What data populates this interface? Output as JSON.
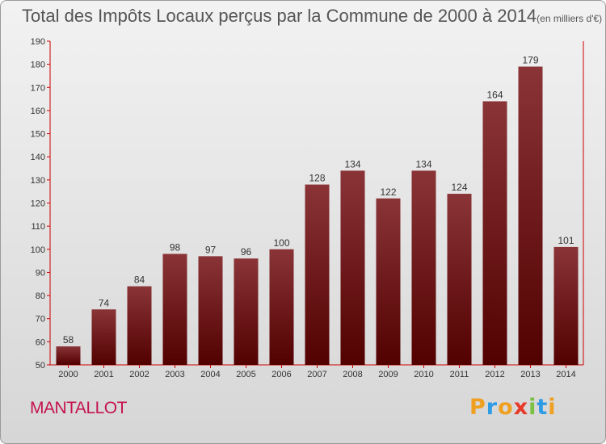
{
  "header": {
    "title": "Total des Impôts Locaux perçus par la Commune de 2000 à 2014",
    "unit": "(en milliers d'€)"
  },
  "commune": "MANTALLOT",
  "logo": {
    "letters": [
      "P",
      "r",
      "o",
      "x",
      "i",
      "t",
      "i"
    ],
    "colors": [
      "#f0a020",
      "#2e9be6",
      "#f0a020",
      "#e83a2a",
      "#7ac143",
      "#2e9be6",
      "#f0a020"
    ]
  },
  "colors": {
    "bar_top": "#8a3438",
    "bar_bottom": "#520000",
    "axis": "#cc0000",
    "title": "#555555",
    "commune": "#c4134d"
  },
  "chart_data": {
    "type": "bar",
    "title": "Total des Impôts Locaux perçus par la Commune de 2000 à 2014",
    "xlabel": "",
    "ylabel": "",
    "categories": [
      "2000",
      "2001",
      "2002",
      "2003",
      "2004",
      "2005",
      "2006",
      "2007",
      "2008",
      "2009",
      "2010",
      "2011",
      "2012",
      "2013",
      "2014"
    ],
    "values": [
      58,
      74,
      84,
      98,
      97,
      96,
      100,
      128,
      134,
      122,
      134,
      124,
      164,
      179,
      101
    ],
    "ylim": [
      50,
      190
    ],
    "yticks": [
      50,
      60,
      70,
      80,
      90,
      100,
      110,
      120,
      130,
      140,
      150,
      160,
      170,
      180,
      190
    ],
    "grid": false
  }
}
